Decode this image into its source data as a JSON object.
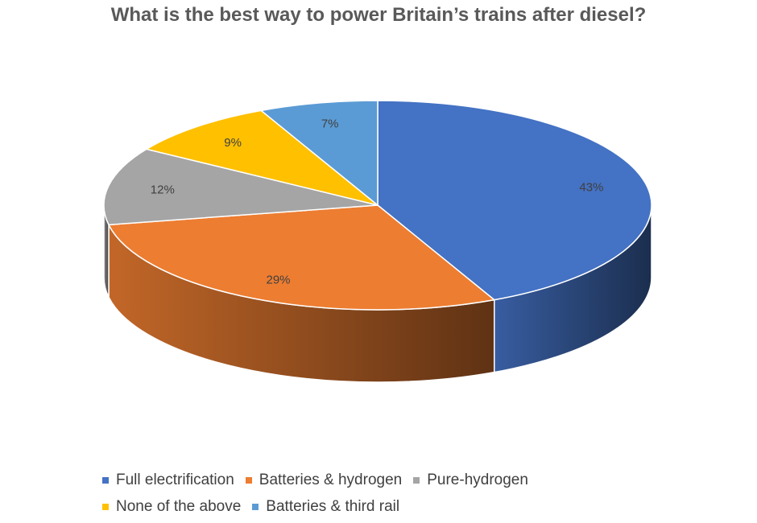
{
  "chart_data": {
    "type": "pie",
    "title": "What is the best way to power Britain’s trains after diesel?",
    "categories": [
      "Full electrification",
      "Batteries & hydrogen",
      "Pure-hydrogen",
      "None of the above",
      "Batteries & third rail"
    ],
    "values": [
      43,
      29,
      12,
      9,
      7
    ],
    "value_labels": [
      "43%",
      "29%",
      "12%",
      "9%",
      "7%"
    ],
    "unit": "%",
    "style": "3d",
    "legend_position": "bottom",
    "colors": [
      "#4472C4",
      "#ED7D31",
      "#A5A5A5",
      "#FFC000",
      "#5B9BD5"
    ]
  }
}
